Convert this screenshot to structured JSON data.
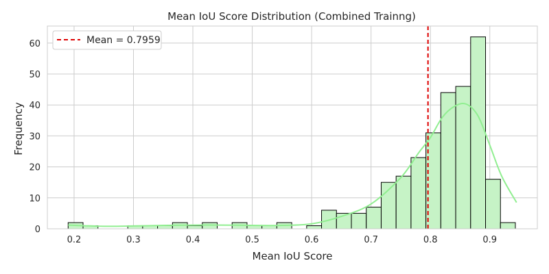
{
  "chart_data": {
    "type": "bar",
    "title": "Mean IoU Score Distribution (Combined Trainng)",
    "xlabel": "Mean IoU Score",
    "ylabel": "Frequency",
    "xlim": [
      0.155,
      0.98
    ],
    "ylim": [
      0,
      65.5
    ],
    "xticks": [
      "0.2",
      "0.3",
      "0.4",
      "0.5",
      "0.6",
      "0.7",
      "0.8",
      "0.9"
    ],
    "yticks": [
      "0",
      "10",
      "20",
      "30",
      "40",
      "50",
      "60"
    ],
    "grid": true,
    "legend_position": "top-left",
    "bin_start": 0.19,
    "bin_width": 0.0251,
    "series": [
      {
        "type": "histogram",
        "values": [
          2,
          1,
          0,
          0,
          1,
          1,
          1,
          2,
          1,
          2,
          0,
          2,
          1,
          1,
          2,
          0,
          1,
          6,
          5,
          5,
          7,
          15,
          17,
          23,
          31,
          44,
          46,
          62,
          16,
          2
        ]
      }
    ],
    "kde": {
      "x": [
        0.19,
        0.25,
        0.3,
        0.35,
        0.4,
        0.45,
        0.5,
        0.55,
        0.6,
        0.65,
        0.7,
        0.75,
        0.78,
        0.8,
        0.82,
        0.84,
        0.86,
        0.88,
        0.9,
        0.92,
        0.945
      ],
      "y": [
        1.2,
        0.8,
        0.9,
        1.1,
        1.2,
        1.2,
        1.1,
        1.1,
        1.6,
        4.0,
        8.0,
        16.5,
        24.5,
        29.5,
        36.0,
        39.5,
        40.3,
        36.5,
        27.0,
        17.0,
        8.5
      ]
    },
    "mean_line": {
      "value": 0.7959,
      "label": "Mean = 0.7959"
    },
    "colors": {
      "bar_fill": "#c6f3c6",
      "bar_edge": "#000000",
      "kde_line": "#90ee90",
      "mean_line": "#dd0000",
      "grid": "#cccccc",
      "axes_edge": "#cccccc"
    }
  }
}
